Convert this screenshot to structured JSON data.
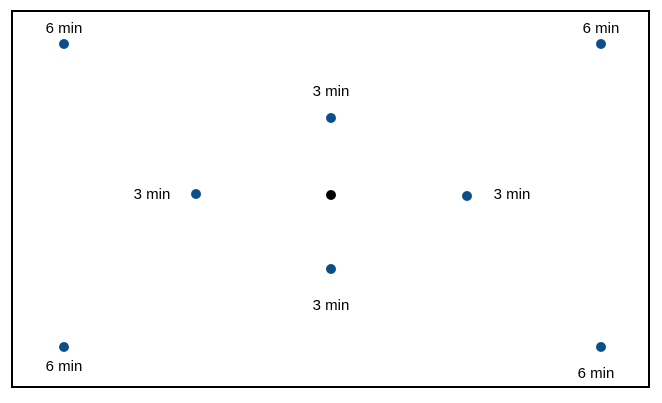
{
  "diagram": {
    "colors": {
      "border": "#000000",
      "point": "#0B4F8A",
      "center": "#000000",
      "background": "#ffffff"
    },
    "center_point": {
      "name": "center-point"
    },
    "points": [
      {
        "name": "point-top-left",
        "label": "6 min"
      },
      {
        "name": "point-top-right",
        "label": "6 min"
      },
      {
        "name": "point-upper-middle",
        "label": "3 min"
      },
      {
        "name": "point-left-middle",
        "label": "3 min"
      },
      {
        "name": "point-right-middle",
        "label": "3 min"
      },
      {
        "name": "point-lower-middle",
        "label": "3 min"
      },
      {
        "name": "point-bottom-left",
        "label": "6 min"
      },
      {
        "name": "point-bottom-right",
        "label": "6 min"
      }
    ]
  }
}
